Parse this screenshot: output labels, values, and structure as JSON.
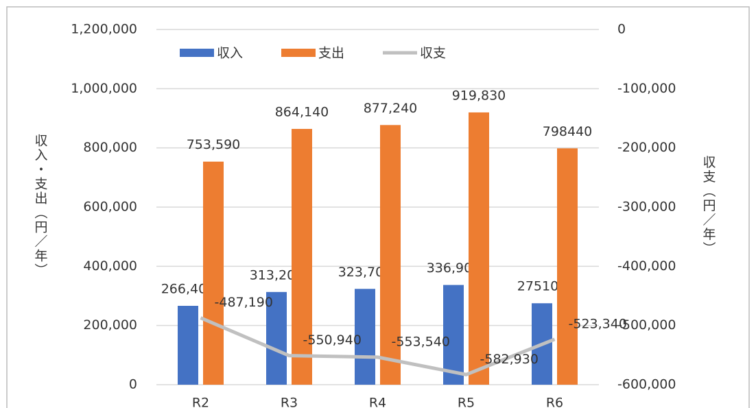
{
  "chart_data": {
    "type": "bar",
    "categories": [
      "R2",
      "R3",
      "R4",
      "R5",
      "R6"
    ],
    "series": [
      {
        "name": "収入",
        "color": "#4472c4",
        "type": "bar",
        "values": [
          266400,
          313200,
          323700,
          336900,
          275100
        ],
        "value_labels": [
          "266,400",
          "313,200",
          "323,700",
          "336,900",
          "275100"
        ]
      },
      {
        "name": "支出",
        "color": "#ed7d31",
        "type": "bar",
        "values": [
          753590,
          864140,
          877240,
          919830,
          798440
        ],
        "value_labels": [
          "753,590",
          "864,140",
          "877,240",
          "919,830",
          "798440"
        ]
      },
      {
        "name": "収支",
        "color": "#c0c0c0",
        "type": "line",
        "axis": "y2",
        "values": [
          -487190,
          -550940,
          -553540,
          -582930,
          -523340
        ],
        "value_labels": [
          "-487,190",
          "-550,940",
          "-553,540",
          "-582,930",
          "-523,340"
        ]
      }
    ],
    "ylabel": "収入・支出（円／年）",
    "y2label": "収支（円／年）",
    "ylim": [
      0,
      1200000
    ],
    "yticks": [
      0,
      {
        "value": 200000,
        "label": "200,000"
      },
      {
        "value": 400000,
        "label": "400,000"
      },
      {
        "value": 600000,
        "label": "600,000"
      },
      {
        "value": 800000,
        "label": "800,000"
      },
      {
        "value": 1000000,
        "label": "1,000,000"
      },
      {
        "value": 1200000,
        "label": "1,200,000"
      }
    ],
    "y2lim": [
      -600000,
      0
    ],
    "y2ticks": [
      {
        "value": -600000,
        "label": "-600,000"
      },
      {
        "value": -500000,
        "label": "-500,000"
      },
      {
        "value": -400000,
        "label": "-400,000"
      },
      {
        "value": -300000,
        "label": "-300,000"
      },
      {
        "value": -200000,
        "label": "-200,000"
      },
      {
        "value": -100000,
        "label": "-100,000"
      },
      0
    ],
    "grid": true,
    "legend": "top"
  }
}
